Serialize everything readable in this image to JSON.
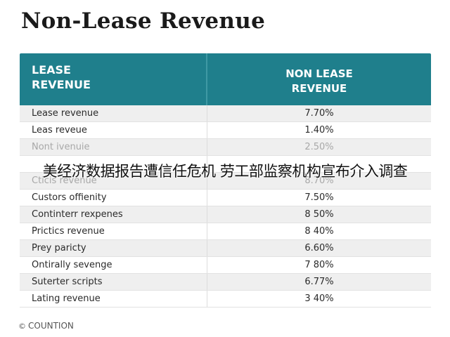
{
  "title": "Non-Lease Revenue",
  "table": {
    "header_left": [
      "LEASE",
      "REVENUE"
    ],
    "header_right": [
      "NON LEASE",
      "REVENUE"
    ],
    "rows": [
      {
        "label": "Lease revenue",
        "value": "7.70%"
      },
      {
        "label": "Leas reveue",
        "value": "1.40%"
      },
      {
        "label": "Nont ivenuie",
        "value": "2.50%"
      },
      {
        "label": "",
        "value": ""
      },
      {
        "label": "Cticis revenue",
        "value": "8.70%"
      },
      {
        "label": "Custors offienity",
        "value": "7.50%"
      },
      {
        "label": "Continterr rexpenes",
        "value": "8 50%"
      },
      {
        "label": "Prictics revenue",
        "value": "8 40%"
      },
      {
        "label": "Prey paricty",
        "value": "6.60%"
      },
      {
        "label": "Ontirally sevenge",
        "value": "7 80%"
      },
      {
        "label": "Suterter scripts",
        "value": "6.77%"
      },
      {
        "label": "Lating revenue",
        "value": "3 40%"
      }
    ]
  },
  "overlay_text": "美经济数据报告遭信任危机 劳工部监察机构宣布介入调查",
  "caption": {
    "icon": "copyright-icon",
    "icon_glyph": "©",
    "text": "COUNTION"
  },
  "colors": {
    "header_bg": "#1f7f8c",
    "header_text": "#ffffff",
    "row_alt_bg": "#efefef"
  }
}
